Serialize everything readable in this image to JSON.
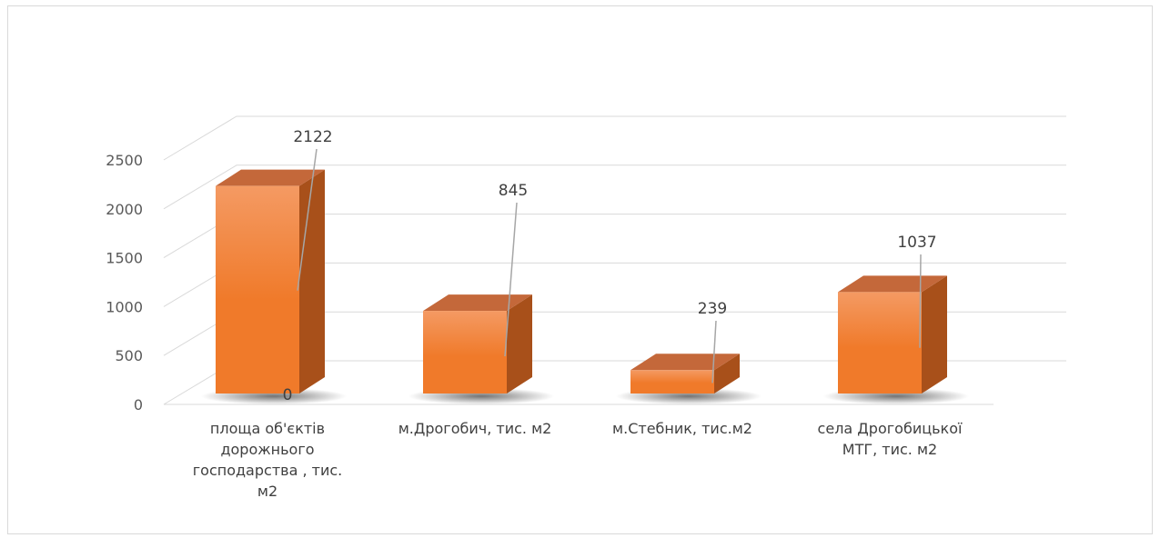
{
  "chart_data": {
    "type": "bar",
    "style": "3d-column",
    "categories": [
      [
        "площа об'єктів",
        "дорожнього",
        "господарства , тис.",
        "м2"
      ],
      [
        "м.Дрогобич, тис. м2"
      ],
      [
        "м.Стебник, тис.м2"
      ],
      [
        "села Дрогобицької",
        "МТГ, тис. м2"
      ]
    ],
    "values": [
      2122,
      845,
      239,
      1037
    ],
    "data_labels": [
      "2122",
      "845",
      "239",
      "1037"
    ],
    "floor_label": "0",
    "yticks": [
      "0",
      "500",
      "1000",
      "1500",
      "2000",
      "2500"
    ],
    "ylim": [
      0,
      2500
    ],
    "grid": true,
    "legend": "none",
    "colors": {
      "bar_front": "#f07a2a",
      "bar_front_top": "#f49a63",
      "bar_top": "#c4683a",
      "bar_side": "#a8501a",
      "gridline": "#d9d9d9",
      "leader_line": "#a6a6a6",
      "text": "#404040"
    }
  }
}
